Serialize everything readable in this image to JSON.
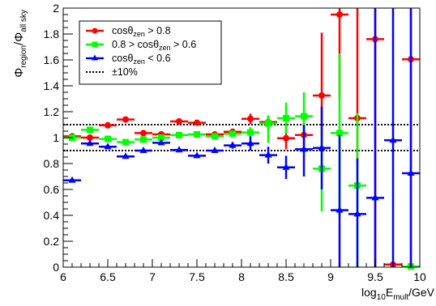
{
  "chart_data": {
    "type": "scatter",
    "xlabel": {
      "base": "log",
      "sub1": "10",
      "mid": "E",
      "sub2": "mult",
      "tail": "/GeV"
    },
    "ylabel": {
      "part1": "Φ",
      "sub1": "region",
      "part2": "/Φ",
      "sub2": "all sky"
    },
    "xlim": [
      6,
      10
    ],
    "ylim": [
      0,
      2
    ],
    "x_ticks": [
      "6",
      "6.5",
      "7",
      "7.5",
      "8",
      "8.5",
      "9",
      "9.5",
      "10"
    ],
    "y_ticks": [
      "0",
      "0.2",
      "0.4",
      "0.6",
      "0.8",
      "1",
      "1.2",
      "1.4",
      "1.6",
      "1.8",
      "2"
    ],
    "reference_lines": [
      0.9,
      1.1
    ],
    "legend": [
      {
        "id": "s1",
        "parts": [
          "cos",
          "θ",
          "zen",
          " > 0.8"
        ]
      },
      {
        "id": "s2",
        "parts": [
          "0.8 > cos",
          "θ",
          "zen",
          " > 0.6"
        ]
      },
      {
        "id": "s3",
        "parts": [
          "cos",
          "θ",
          "zen",
          " < 0.6"
        ]
      },
      {
        "id": "ref",
        "text": "±10%"
      }
    ],
    "series": [
      {
        "color": "#ff0000",
        "marker": "circle",
        "points": [
          {
            "x": 6.1,
            "y": 1.01,
            "lo": 0.995,
            "hi": 1.025
          },
          {
            "x": 6.3,
            "y": 1.0,
            "lo": 0.99,
            "hi": 1.01
          },
          {
            "x": 6.5,
            "y": 1.095,
            "lo": 1.085,
            "hi": 1.105
          },
          {
            "x": 6.7,
            "y": 1.14,
            "lo": 1.13,
            "hi": 1.15
          },
          {
            "x": 6.9,
            "y": 1.035,
            "lo": 1.025,
            "hi": 1.045
          },
          {
            "x": 7.1,
            "y": 1.025,
            "lo": 1.015,
            "hi": 1.035
          },
          {
            "x": 7.3,
            "y": 1.125,
            "lo": 1.11,
            "hi": 1.14
          },
          {
            "x": 7.5,
            "y": 1.115,
            "lo": 1.1,
            "hi": 1.13
          },
          {
            "x": 7.7,
            "y": 1.025,
            "lo": 1.01,
            "hi": 1.04
          },
          {
            "x": 7.9,
            "y": 1.045,
            "lo": 1.025,
            "hi": 1.065
          },
          {
            "x": 8.1,
            "y": 1.145,
            "lo": 1.105,
            "hi": 1.185
          },
          {
            "x": 8.3,
            "y": 1.12,
            "lo": 1.07,
            "hi": 1.17
          },
          {
            "x": 8.5,
            "y": 0.995,
            "lo": 0.91,
            "hi": 1.08
          },
          {
            "x": 8.7,
            "y": 1.02,
            "lo": 0.91,
            "hi": 1.14
          },
          {
            "x": 8.9,
            "y": 1.325,
            "lo": 1.0,
            "hi": 1.81
          },
          {
            "x": 9.1,
            "y": 1.95,
            "lo": 1.3,
            "hi": 2.0
          },
          {
            "x": 9.3,
            "y": 1.15,
            "lo": 0.8,
            "hi": 2.0
          },
          {
            "x": 9.5,
            "y": 1.76,
            "lo": 0.0,
            "hi": 2.0
          },
          {
            "x": 9.7,
            "y": 0.02,
            "lo": 0.0,
            "hi": 0.04
          },
          {
            "x": 9.9,
            "y": 1.605,
            "lo": 0.0,
            "hi": 2.0
          }
        ]
      },
      {
        "color": "#00ff00",
        "marker": "square",
        "points": [
          {
            "x": 6.1,
            "y": 1.0,
            "lo": 0.99,
            "hi": 1.01
          },
          {
            "x": 6.3,
            "y": 1.06,
            "lo": 1.05,
            "hi": 1.07
          },
          {
            "x": 6.5,
            "y": 0.99,
            "lo": 0.98,
            "hi": 1.0
          },
          {
            "x": 6.7,
            "y": 0.965,
            "lo": 0.955,
            "hi": 0.975
          },
          {
            "x": 6.9,
            "y": 0.985,
            "lo": 0.975,
            "hi": 0.995
          },
          {
            "x": 7.1,
            "y": 1.0,
            "lo": 0.99,
            "hi": 1.01
          },
          {
            "x": 7.3,
            "y": 1.02,
            "lo": 1.005,
            "hi": 1.035
          },
          {
            "x": 7.5,
            "y": 1.025,
            "lo": 1.01,
            "hi": 1.04
          },
          {
            "x": 7.7,
            "y": 1.01,
            "lo": 0.995,
            "hi": 1.025
          },
          {
            "x": 7.9,
            "y": 1.03,
            "lo": 1.01,
            "hi": 1.05
          },
          {
            "x": 8.1,
            "y": 1.04,
            "lo": 1.0,
            "hi": 1.08
          },
          {
            "x": 8.3,
            "y": 1.11,
            "lo": 0.96,
            "hi": 1.17
          },
          {
            "x": 8.5,
            "y": 1.15,
            "lo": 1.03,
            "hi": 1.27
          },
          {
            "x": 8.7,
            "y": 1.165,
            "lo": 0.99,
            "hi": 1.35
          },
          {
            "x": 8.9,
            "y": 0.76,
            "lo": 0.43,
            "hi": 1.08
          },
          {
            "x": 9.1,
            "y": 1.035,
            "lo": 0.39,
            "hi": 1.65
          },
          {
            "x": 9.3,
            "y": 0.63,
            "lo": 0.0,
            "hi": 1.19
          },
          {
            "x": 9.9,
            "y": 0.005,
            "lo": 0.0,
            "hi": 0.01
          }
        ]
      },
      {
        "color": "#0000ff",
        "marker": "triangle",
        "points": [
          {
            "x": 6.1,
            "y": 0.67,
            "lo": 0.66,
            "hi": 0.68
          },
          {
            "x": 6.3,
            "y": 0.955,
            "lo": 0.945,
            "hi": 0.965
          },
          {
            "x": 6.5,
            "y": 0.93,
            "lo": 0.92,
            "hi": 0.94
          },
          {
            "x": 6.7,
            "y": 0.855,
            "lo": 0.845,
            "hi": 0.865
          },
          {
            "x": 6.9,
            "y": 0.9,
            "lo": 0.89,
            "hi": 0.91
          },
          {
            "x": 7.1,
            "y": 0.96,
            "lo": 0.95,
            "hi": 0.97
          },
          {
            "x": 7.3,
            "y": 0.905,
            "lo": 0.89,
            "hi": 0.92
          },
          {
            "x": 7.5,
            "y": 0.86,
            "lo": 0.845,
            "hi": 0.875
          },
          {
            "x": 7.7,
            "y": 0.9,
            "lo": 0.885,
            "hi": 0.915
          },
          {
            "x": 7.9,
            "y": 0.94,
            "lo": 0.915,
            "hi": 0.965
          },
          {
            "x": 8.1,
            "y": 0.955,
            "lo": 0.9,
            "hi": 1.01
          },
          {
            "x": 8.3,
            "y": 0.865,
            "lo": 0.8,
            "hi": 0.93
          },
          {
            "x": 8.5,
            "y": 0.77,
            "lo": 0.68,
            "hi": 0.86
          },
          {
            "x": 8.7,
            "y": 0.91,
            "lo": 0.7,
            "hi": 1.1
          },
          {
            "x": 8.9,
            "y": 0.92,
            "lo": 0.6,
            "hi": 1.24
          },
          {
            "x": 9.1,
            "y": 0.44,
            "lo": 0.0,
            "hi": 1.02
          },
          {
            "x": 9.3,
            "y": 0.41,
            "lo": 0.0,
            "hi": 0.84
          },
          {
            "x": 9.5,
            "y": 0.535,
            "lo": 0.0,
            "hi": 2.0
          },
          {
            "x": 9.7,
            "y": 0.98,
            "lo": 0.0,
            "hi": 2.0
          },
          {
            "x": 9.9,
            "y": 0.725,
            "lo": 0.0,
            "hi": 2.0
          }
        ]
      }
    ]
  }
}
